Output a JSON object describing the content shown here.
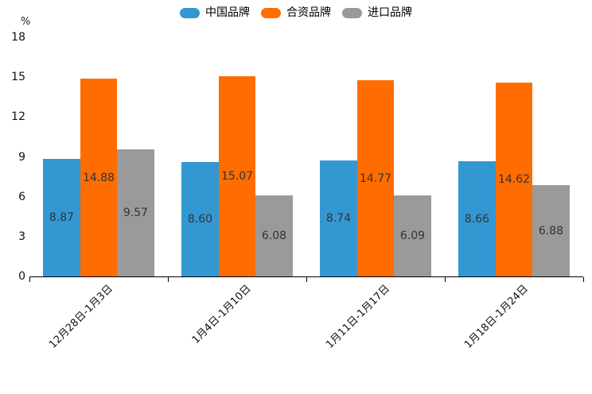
{
  "chart_data": {
    "type": "bar",
    "title": "",
    "ylabel": "%",
    "xlabel": "",
    "categories": [
      "12月28日-1月3日",
      "1月4日-1月10日",
      "1月11日-1月17日",
      "1月18日-1月24日"
    ],
    "series": [
      {
        "name": "中国品牌",
        "color": "#3398D2",
        "values": [
          8.87,
          8.6,
          8.74,
          8.66
        ]
      },
      {
        "name": "合资品牌",
        "color": "#FF6C00",
        "values": [
          14.88,
          15.07,
          14.77,
          14.62
        ]
      },
      {
        "name": "进口品牌",
        "color": "#9A9A9A",
        "values": [
          9.57,
          6.08,
          6.09,
          6.88
        ]
      }
    ],
    "ylim": [
      0,
      18
    ],
    "yticks": [
      0,
      3,
      6,
      9,
      12,
      15,
      18
    ],
    "grid": false,
    "legend_position": "top",
    "value_labels": true,
    "value_label_decimals": 2,
    "axis_color": "#000000",
    "label_color": "#333333"
  }
}
